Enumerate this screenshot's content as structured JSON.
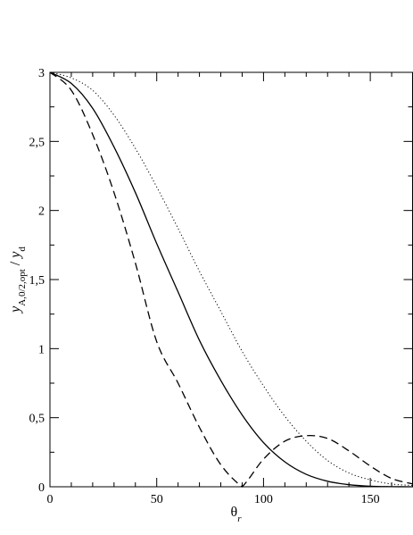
{
  "chart_data": {
    "type": "line",
    "xlabel": {
      "main": "θ",
      "subscript": "r"
    },
    "ylabel": {
      "numerator": "y",
      "numerator_subscript": "A,0/2,opt",
      "separator": " / ",
      "denominator": "y",
      "denominator_subscript": "d"
    },
    "xlim": [
      0,
      170
    ],
    "ylim": [
      0,
      3
    ],
    "xticks": [
      {
        "value": 0,
        "label": "0"
      },
      {
        "value": 50,
        "label": "50"
      },
      {
        "value": 100,
        "label": "100"
      },
      {
        "value": 150,
        "label": "150"
      }
    ],
    "yticks": [
      {
        "value": 0,
        "label": "0"
      },
      {
        "value": 0.5,
        "label": "0,5"
      },
      {
        "value": 1,
        "label": "1"
      },
      {
        "value": 1.5,
        "label": "1,5"
      },
      {
        "value": 2,
        "label": "2"
      },
      {
        "value": 2.5,
        "label": "2,5"
      },
      {
        "value": 3,
        "label": "3"
      }
    ],
    "grid": false,
    "legend": "none",
    "series": [
      {
        "style": "solid",
        "color": "#000000",
        "x": [
          0,
          10,
          20,
          30,
          40,
          50,
          60,
          70,
          80,
          90,
          100,
          110,
          120,
          130,
          140,
          150,
          160,
          170
        ],
        "y": [
          3.0,
          2.92,
          2.74,
          2.46,
          2.13,
          1.76,
          1.41,
          1.06,
          0.77,
          0.52,
          0.32,
          0.18,
          0.09,
          0.04,
          0.015,
          0.004,
          0.001,
          0.0
        ]
      },
      {
        "style": "dashed",
        "color": "#000000",
        "x": [
          0,
          10,
          20,
          30,
          40,
          50,
          60,
          70,
          80,
          90,
          100,
          110,
          120,
          130,
          140,
          150,
          160,
          170
        ],
        "y": [
          3.0,
          2.87,
          2.55,
          2.13,
          1.62,
          1.05,
          0.75,
          0.43,
          0.16,
          0.0,
          0.2,
          0.33,
          0.37,
          0.35,
          0.26,
          0.15,
          0.06,
          0.02
        ]
      },
      {
        "style": "dotted",
        "color": "#000000",
        "x": [
          0,
          10,
          20,
          30,
          40,
          50,
          60,
          70,
          80,
          90,
          100,
          110,
          120,
          130,
          140,
          150,
          160,
          170
        ],
        "y": [
          3.0,
          2.96,
          2.87,
          2.69,
          2.45,
          2.17,
          1.87,
          1.56,
          1.27,
          0.98,
          0.73,
          0.51,
          0.33,
          0.19,
          0.1,
          0.05,
          0.02,
          0.01
        ]
      }
    ]
  }
}
